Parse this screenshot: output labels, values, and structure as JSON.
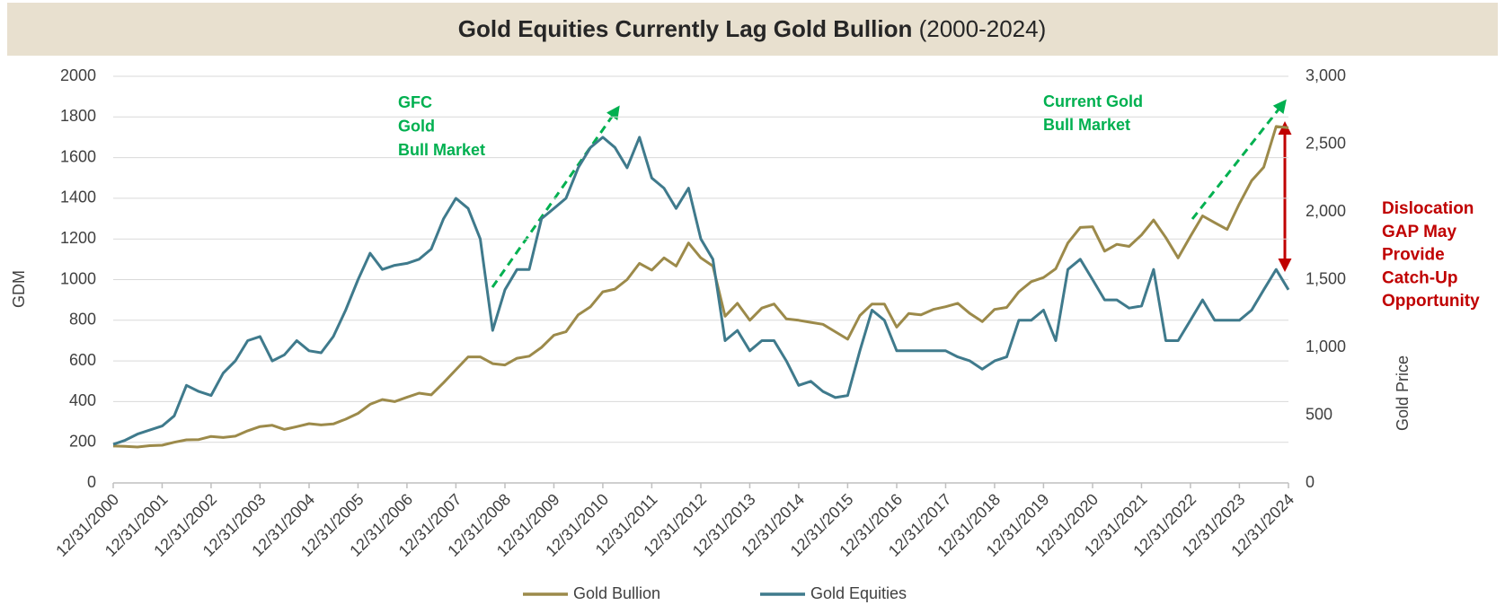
{
  "chart_data": {
    "type": "line",
    "title": "Gold Equities Currently Lag Gold Bullion",
    "title_period": "(2000-2024)",
    "ylabel": "GDM",
    "y2label": "Gold Price",
    "ylim": [
      0,
      2000
    ],
    "yticks": [
      0,
      200,
      400,
      600,
      800,
      1000,
      1200,
      1400,
      1600,
      1800,
      2000
    ],
    "y2lim": [
      0,
      3000
    ],
    "y2ticks": [
      0,
      500,
      {
        "value": 1000,
        "label": "1,000"
      },
      {
        "value": 1500,
        "label": "1,500"
      },
      {
        "value": 2000,
        "label": "2,000"
      },
      {
        "value": 2500,
        "label": "2,500"
      },
      {
        "value": 3000,
        "label": "3,000"
      }
    ],
    "xticks": [
      "12/31/2000",
      "12/31/2001",
      "12/31/2002",
      "12/31/2003",
      "12/31/2004",
      "12/31/2005",
      "12/31/2006",
      "12/31/2007",
      "12/31/2008",
      "12/31/2009",
      "12/31/2010",
      "12/31/2011",
      "12/31/2012",
      "12/31/2013",
      "12/31/2014",
      "12/31/2015",
      "12/31/2016",
      "12/31/2017",
      "12/31/2018",
      "12/31/2019",
      "12/31/2020",
      "12/31/2021",
      "12/31/2022",
      "12/31/2023",
      "12/31/2024"
    ],
    "grid": true,
    "x": [
      "12/31/2000",
      "3/31/2001",
      "6/30/2001",
      "9/30/2001",
      "12/31/2001",
      "3/31/2002",
      "6/30/2002",
      "9/30/2002",
      "12/31/2002",
      "3/31/2003",
      "6/30/2003",
      "9/30/2003",
      "12/31/2003",
      "3/31/2004",
      "6/30/2004",
      "9/30/2004",
      "12/31/2004",
      "3/31/2005",
      "6/30/2005",
      "9/30/2005",
      "12/31/2005",
      "3/31/2006",
      "6/30/2006",
      "9/30/2006",
      "12/31/2006",
      "3/31/2007",
      "6/30/2007",
      "9/30/2007",
      "12/31/2007",
      "3/31/2008",
      "6/30/2008",
      "9/30/2008",
      "12/31/2008",
      "3/31/2009",
      "6/30/2009",
      "9/30/2009",
      "12/31/2009",
      "3/31/2010",
      "6/30/2010",
      "9/30/2010",
      "12/31/2010",
      "3/31/2011",
      "6/30/2011",
      "9/30/2011",
      "12/31/2011",
      "3/31/2012",
      "6/30/2012",
      "9/30/2012",
      "12/31/2012",
      "3/31/2013",
      "6/30/2013",
      "9/30/2013",
      "12/31/2013",
      "3/31/2014",
      "6/30/2014",
      "9/30/2014",
      "12/31/2014",
      "3/31/2015",
      "6/30/2015",
      "9/30/2015",
      "12/31/2015",
      "3/31/2016",
      "6/30/2016",
      "9/30/2016",
      "12/31/2016",
      "3/31/2017",
      "6/30/2017",
      "9/30/2017",
      "12/31/2017",
      "3/31/2018",
      "6/30/2018",
      "9/30/2018",
      "12/31/2018",
      "3/31/2019",
      "6/30/2019",
      "9/30/2019",
      "12/31/2019",
      "3/31/2020",
      "6/30/2020",
      "9/30/2020",
      "12/31/2020",
      "3/31/2021",
      "6/30/2021",
      "9/30/2021",
      "12/31/2021",
      "3/31/2022",
      "6/30/2022",
      "9/30/2022",
      "12/31/2022",
      "3/31/2023",
      "6/30/2023",
      "9/30/2023",
      "12/31/2023",
      "3/31/2024",
      "6/30/2024",
      "9/30/2024",
      "12/31/2024"
    ],
    "series": [
      {
        "name": "Gold Bullion",
        "color": "#9c8a4a",
        "axis": "y2",
        "values": [
          272,
          270,
          265,
          275,
          278,
          300,
          318,
          320,
          343,
          335,
          345,
          385,
          416,
          425,
          395,
          415,
          437,
          428,
          435,
          470,
          513,
          580,
          615,
          600,
          632,
          662,
          650,
          740,
          835,
          930,
          930,
          880,
          870,
          920,
          935,
          1000,
          1090,
          1115,
          1240,
          1300,
          1410,
          1430,
          1500,
          1620,
          1570,
          1660,
          1600,
          1770,
          1660,
          1600,
          1230,
          1325,
          1200,
          1290,
          1320,
          1210,
          1200,
          1185,
          1170,
          1115,
          1060,
          1235,
          1320,
          1320,
          1150,
          1250,
          1240,
          1280,
          1300,
          1325,
          1250,
          1190,
          1280,
          1295,
          1410,
          1485,
          1515,
          1580,
          1770,
          1885,
          1890,
          1710,
          1760,
          1745,
          1830,
          1940,
          1810,
          1660,
          1820,
          1970,
          1920,
          1870,
          2060,
          2230,
          2330,
          2630,
          2620
        ]
      },
      {
        "name": "Gold Equities",
        "color": "#3f7a8c",
        "values": [
          190,
          210,
          240,
          260,
          280,
          330,
          480,
          450,
          430,
          540,
          600,
          700,
          720,
          600,
          630,
          700,
          650,
          640,
          720,
          850,
          1000,
          1130,
          1050,
          1070,
          1080,
          1100,
          1150,
          1300,
          1400,
          1350,
          1200,
          750,
          950,
          1050,
          1050,
          1300,
          1350,
          1400,
          1550,
          1650,
          1700,
          1650,
          1550,
          1700,
          1500,
          1450,
          1350,
          1450,
          1200,
          1100,
          700,
          750,
          650,
          700,
          700,
          600,
          480,
          500,
          450,
          420,
          430,
          650,
          850,
          800,
          650,
          650,
          650,
          650,
          650,
          620,
          600,
          560,
          600,
          620,
          800,
          800,
          850,
          700,
          1050,
          1100,
          1000,
          900,
          900,
          860,
          870,
          1050,
          700,
          700,
          800,
          900,
          800,
          800,
          800,
          850,
          950,
          1050,
          950
        ]
      }
    ],
    "annotations": [
      {
        "lines": [
          "GFC",
          "Gold",
          "Bull Market"
        ]
      },
      {
        "lines": [
          "Current Gold",
          "Bull Market"
        ]
      },
      {
        "lines": [
          "Dislocation",
          "GAP May",
          "Provide",
          "Catch-Up",
          "Opportunity"
        ]
      }
    ]
  }
}
